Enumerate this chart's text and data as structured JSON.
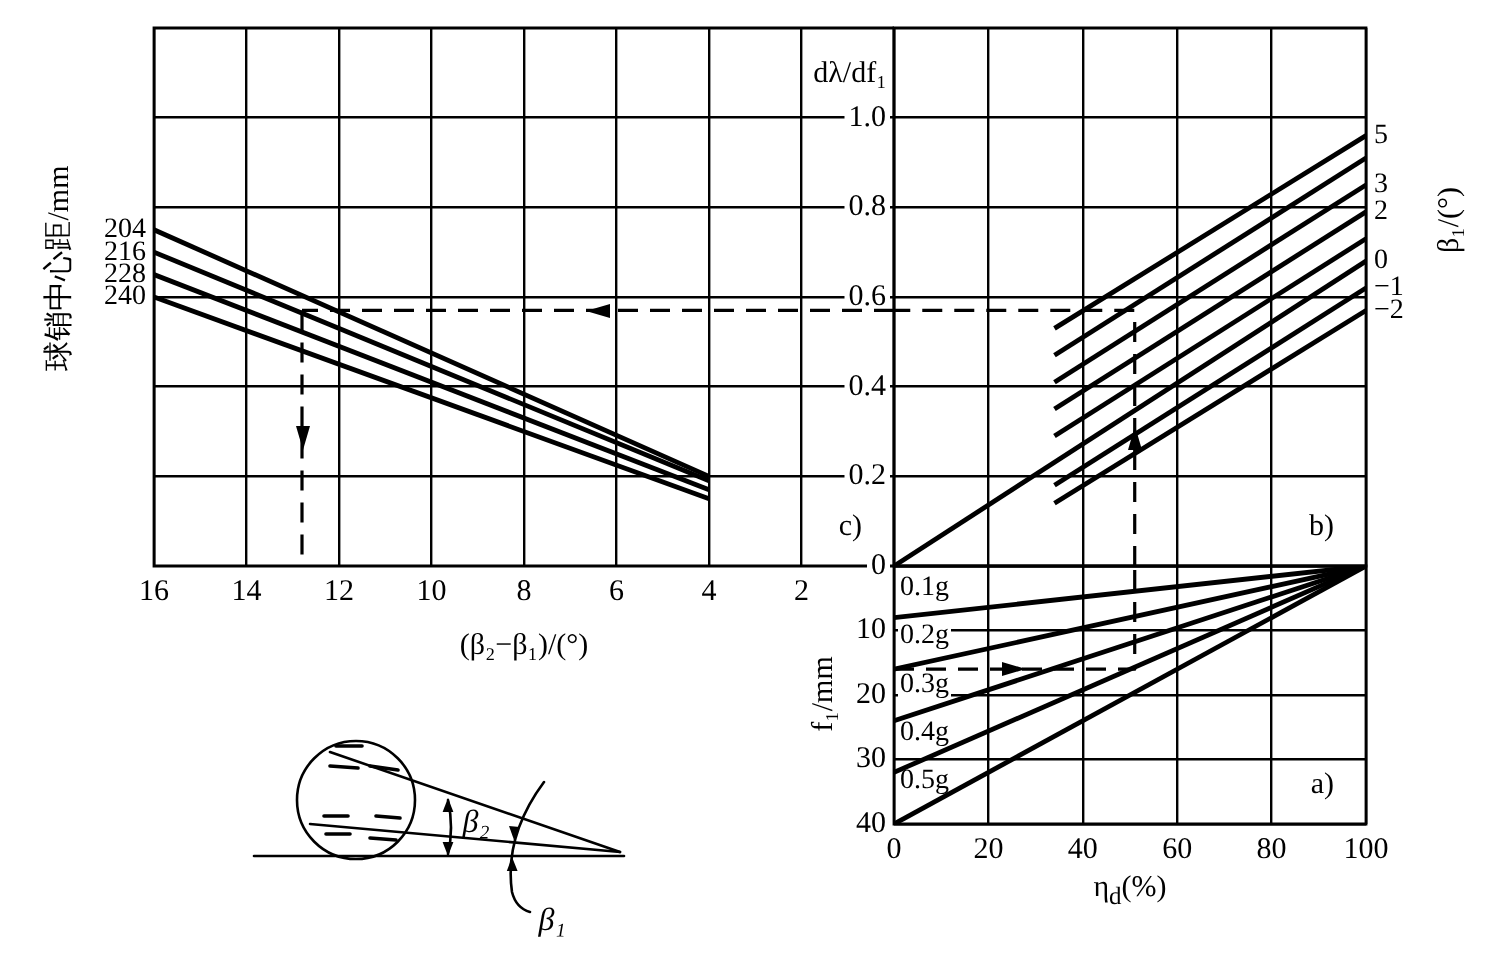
{
  "chart_data": [
    {
      "type": "line",
      "xlabel": "(β₂−β₁)/(°)",
      "legend_title": "球销中心距/mm",
      "xlim": [
        16,
        0
      ],
      "xticks": [
        16,
        14,
        12,
        10,
        8,
        6,
        4,
        2
      ],
      "ylim": [
        0,
        1.2
      ],
      "yticks": [
        0.2,
        0.4,
        0.6,
        0.8,
        1
      ],
      "tick_labels": "x",
      "grid": true,
      "annotations": [
        "c)"
      ],
      "series": [
        {
          "name": "204",
          "color": "#000000",
          "x": [
            16,
            4
          ],
          "values": [
            0.75,
            0.2
          ]
        },
        {
          "name": "216",
          "color": "#000000",
          "x": [
            16,
            4
          ],
          "values": [
            0.7,
            0.19
          ]
        },
        {
          "name": "228",
          "color": "#000000",
          "x": [
            16,
            4
          ],
          "values": [
            0.65,
            0.17
          ]
        },
        {
          "name": "240",
          "color": "#000000",
          "x": [
            16,
            4
          ],
          "values": [
            0.6,
            0.15
          ]
        },
        {
          "color": "#000000",
          "x": [
            0,
            12.8
          ],
          "values": [
            0.57,
            0.57
          ],
          "line_style": "dashed"
        },
        {
          "color": "#000000",
          "x": [
            12.8,
            12.8
          ],
          "values": [
            0.57,
            0
          ],
          "line_style": "dashed"
        }
      ]
    },
    {
      "type": "line",
      "ylabel": "dλ/df₁",
      "legend_title": "β₁/(°)",
      "xlim": [
        0,
        100
      ],
      "xticks": [
        0,
        20,
        40,
        60,
        80,
        100
      ],
      "ylim": [
        0,
        1.2
      ],
      "yticks": [
        0.2,
        0.4,
        0.6,
        0.8,
        {
          "value": 1,
          "label": "1.0"
        }
      ],
      "tick_labels": "y",
      "grid": true,
      "annotations": [
        "b)"
      ],
      "series": [
        {
          "name": "5",
          "color": "#000000",
          "x": [
            34,
            100
          ],
          "values": [
            0.53,
            0.96
          ]
        },
        {
          "color": "#000000",
          "x": [
            34,
            100
          ],
          "values": [
            0.47,
            0.91
          ]
        },
        {
          "name": "3",
          "color": "#000000",
          "x": [
            34,
            100
          ],
          "values": [
            0.41,
            0.85
          ]
        },
        {
          "name": "2",
          "color": "#000000",
          "x": [
            34,
            100
          ],
          "values": [
            0.35,
            0.79
          ]
        },
        {
          "color": "#000000",
          "x": [
            34,
            100
          ],
          "values": [
            0.29,
            0.73
          ]
        },
        {
          "name": "0",
          "color": "#000000",
          "x": [
            0,
            100
          ],
          "values": [
            0,
            0.68
          ]
        },
        {
          "name": "−1",
          "color": "#000000",
          "x": [
            34,
            100
          ],
          "values": [
            0.18,
            0.62
          ]
        },
        {
          "name": "−2",
          "color": "#000000",
          "x": [
            34,
            100
          ],
          "values": [
            0.14,
            0.57
          ]
        },
        {
          "color": "#000000",
          "x": [
            51,
            51,
            0
          ],
          "values": [
            0,
            0.57,
            0.57
          ],
          "line_style": "dashed"
        }
      ]
    },
    {
      "type": "line",
      "xlabel": "η$_{d}$(%)",
      "ylabel": "f₁/mm",
      "xlim": [
        0,
        100
      ],
      "xticks": [
        0,
        20,
        40,
        60,
        80,
        100
      ],
      "ylim": [
        40,
        0
      ],
      "yticks": [
        0,
        10,
        20,
        30,
        40
      ],
      "grid": true,
      "annotations": [
        "a)"
      ],
      "series": [
        {
          "name": "0.1g",
          "color": "#000000",
          "x": [
            0,
            100
          ],
          "values": [
            8,
            0
          ]
        },
        {
          "name": "0.2g",
          "color": "#000000",
          "x": [
            0,
            100
          ],
          "values": [
            16,
            0
          ]
        },
        {
          "name": "0.3g",
          "color": "#000000",
          "x": [
            0,
            100
          ],
          "values": [
            24,
            0
          ]
        },
        {
          "name": "0.4g",
          "color": "#000000",
          "x": [
            0,
            100
          ],
          "values": [
            32,
            0
          ]
        },
        {
          "name": "0.5g",
          "color": "#000000",
          "x": [
            0,
            100
          ],
          "values": [
            40,
            0
          ]
        },
        {
          "color": "#000000",
          "x": [
            0,
            51,
            51
          ],
          "values": [
            16,
            16,
            0
          ],
          "line_style": "dashed"
        }
      ]
    },
    {
      "type": "other",
      "annotations": [
        "β₂",
        "β₁"
      ]
    }
  ]
}
